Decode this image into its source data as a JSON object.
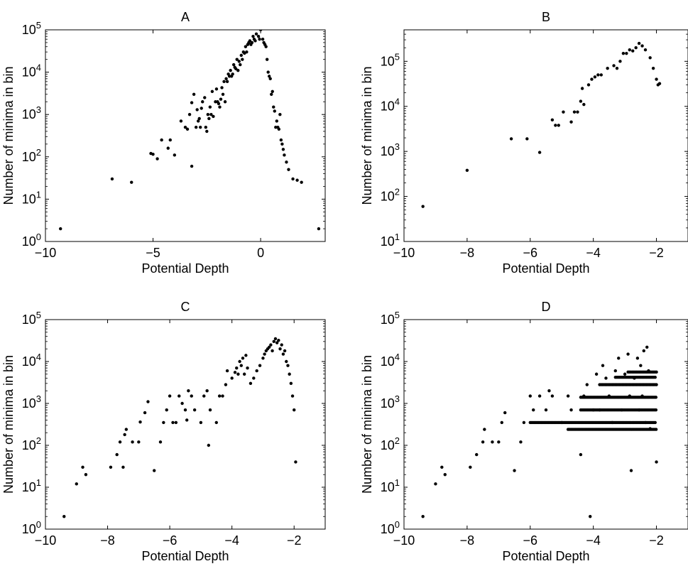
{
  "chart_data": [
    {
      "type": "scatter",
      "title": "A",
      "xlabel": "Potential Depth",
      "ylabel": "Number of minima in bin",
      "xlim": [
        -10,
        3
      ],
      "ylim": [
        1,
        100000
      ],
      "yscale": "log",
      "xticks": [
        -10,
        -5,
        0
      ],
      "yticks": [
        1,
        10,
        100,
        1000,
        10000,
        100000
      ],
      "grid": false,
      "marker_color": "#000000",
      "points": [
        [
          -9.3,
          2
        ],
        [
          -6.9,
          30
        ],
        [
          -6.0,
          25
        ],
        [
          -5.1,
          120
        ],
        [
          -5.0,
          115
        ],
        [
          -4.8,
          90
        ],
        [
          -4.6,
          250
        ],
        [
          -4.3,
          160
        ],
        [
          -4.2,
          250
        ],
        [
          -4.0,
          110
        ],
        [
          -3.7,
          700
        ],
        [
          -3.5,
          500
        ],
        [
          -3.4,
          450
        ],
        [
          -3.3,
          1000
        ],
        [
          -3.2,
          60
        ],
        [
          -3.2,
          1900
        ],
        [
          -3.1,
          3000
        ],
        [
          -3.0,
          500
        ],
        [
          -2.95,
          1300
        ],
        [
          -2.9,
          700
        ],
        [
          -2.85,
          800
        ],
        [
          -2.8,
          500
        ],
        [
          -2.75,
          1400
        ],
        [
          -2.7,
          2000
        ],
        [
          -2.6,
          2500
        ],
        [
          -2.55,
          500
        ],
        [
          -2.5,
          400
        ],
        [
          -2.45,
          1000
        ],
        [
          -2.4,
          800
        ],
        [
          -2.35,
          1500
        ],
        [
          -2.3,
          1000
        ],
        [
          -2.25,
          3500
        ],
        [
          -2.2,
          900
        ],
        [
          -2.1,
          2000
        ],
        [
          -2.05,
          4000
        ],
        [
          -2.0,
          2000
        ],
        [
          -1.95,
          1800
        ],
        [
          -1.9,
          1500
        ],
        [
          -1.85,
          2300
        ],
        [
          -1.8,
          4300
        ],
        [
          -1.75,
          3000
        ],
        [
          -1.7,
          6000
        ],
        [
          -1.65,
          2000
        ],
        [
          -1.6,
          7000
        ],
        [
          -1.55,
          6000
        ],
        [
          -1.5,
          9000
        ],
        [
          -1.45,
          8000
        ],
        [
          -1.4,
          11000
        ],
        [
          -1.35,
          8000
        ],
        [
          -1.3,
          9000
        ],
        [
          -1.25,
          15000
        ],
        [
          -1.2,
          13000
        ],
        [
          -1.15,
          12000
        ],
        [
          -1.1,
          20000
        ],
        [
          -1.05,
          11000
        ],
        [
          -1.0,
          18000
        ],
        [
          -0.95,
          15000
        ],
        [
          -0.9,
          25000
        ],
        [
          -0.85,
          20000
        ],
        [
          -0.8,
          30000
        ],
        [
          -0.75,
          28000
        ],
        [
          -0.7,
          40000
        ],
        [
          -0.65,
          30000
        ],
        [
          -0.6,
          45000
        ],
        [
          -0.55,
          50000
        ],
        [
          -0.5,
          55000
        ],
        [
          -0.45,
          45000
        ],
        [
          -0.4,
          50000
        ],
        [
          -0.35,
          70000
        ],
        [
          -0.3,
          60000
        ],
        [
          -0.25,
          55000
        ],
        [
          -0.2,
          80000
        ],
        [
          -0.15,
          130000
        ],
        [
          -0.1,
          70000
        ],
        [
          -0.05,
          60000
        ],
        [
          0.0,
          100000
        ],
        [
          0.05,
          120000
        ],
        [
          0.1,
          60000
        ],
        [
          0.15,
          50000
        ],
        [
          0.2,
          45000
        ],
        [
          0.25,
          40000
        ],
        [
          0.3,
          20000
        ],
        [
          0.35,
          10000
        ],
        [
          0.4,
          8000
        ],
        [
          0.45,
          7000
        ],
        [
          0.5,
          3000
        ],
        [
          0.55,
          3500
        ],
        [
          0.6,
          1500
        ],
        [
          0.65,
          1200
        ],
        [
          0.7,
          500
        ],
        [
          0.75,
          700
        ],
        [
          0.8,
          500
        ],
        [
          0.85,
          450
        ],
        [
          0.9,
          1000
        ],
        [
          0.95,
          250
        ],
        [
          1.0,
          200
        ],
        [
          1.05,
          150
        ],
        [
          1.1,
          110
        ],
        [
          1.2,
          75
        ],
        [
          1.3,
          50
        ],
        [
          1.5,
          30
        ],
        [
          1.7,
          28
        ],
        [
          1.9,
          25
        ],
        [
          2.7,
          2
        ]
      ]
    },
    {
      "type": "scatter",
      "title": "B",
      "xlabel": "Potential Depth",
      "ylabel": "Number of minima in bin",
      "xlim": [
        -10,
        -1
      ],
      "ylim": [
        10,
        500000
      ],
      "yscale": "log",
      "xticks": [
        -10,
        -8,
        -6,
        -4,
        -2
      ],
      "yticks": [
        10,
        100,
        1000,
        10000,
        100000
      ],
      "grid": false,
      "marker_color": "#000000",
      "points": [
        [
          -9.4,
          60
        ],
        [
          -8.0,
          380
        ],
        [
          -6.6,
          1900
        ],
        [
          -6.1,
          1900
        ],
        [
          -5.7,
          950
        ],
        [
          -5.3,
          5000
        ],
        [
          -5.2,
          3800
        ],
        [
          -5.1,
          3800
        ],
        [
          -4.95,
          7500
        ],
        [
          -4.7,
          4500
        ],
        [
          -4.6,
          7500
        ],
        [
          -4.5,
          7500
        ],
        [
          -4.4,
          13000
        ],
        [
          -4.35,
          25000
        ],
        [
          -4.3,
          11000
        ],
        [
          -4.15,
          30000
        ],
        [
          -4.05,
          40000
        ],
        [
          -3.95,
          45000
        ],
        [
          -3.85,
          50000
        ],
        [
          -3.75,
          50000
        ],
        [
          -3.55,
          70000
        ],
        [
          -3.35,
          80000
        ],
        [
          -3.25,
          70000
        ],
        [
          -3.15,
          100000
        ],
        [
          -3.05,
          150000
        ],
        [
          -2.95,
          150000
        ],
        [
          -2.85,
          180000
        ],
        [
          -2.75,
          170000
        ],
        [
          -2.65,
          200000
        ],
        [
          -2.55,
          250000
        ],
        [
          -2.45,
          220000
        ],
        [
          -2.35,
          180000
        ],
        [
          -2.2,
          120000
        ],
        [
          -2.1,
          70000
        ],
        [
          -2.0,
          40000
        ],
        [
          -1.95,
          30000
        ],
        [
          -1.9,
          32000
        ]
      ]
    },
    {
      "type": "scatter",
      "title": "C",
      "xlabel": "Potential Depth",
      "ylabel": "Number of minima in bin",
      "xlim": [
        -10,
        -1
      ],
      "ylim": [
        1,
        100000
      ],
      "yscale": "log",
      "xticks": [
        -10,
        -8,
        -6,
        -4,
        -2
      ],
      "yticks": [
        1,
        10,
        100,
        1000,
        10000,
        100000
      ],
      "grid": false,
      "marker_color": "#000000",
      "points": [
        [
          -9.4,
          2
        ],
        [
          -9.0,
          12
        ],
        [
          -8.8,
          30
        ],
        [
          -8.7,
          20
        ],
        [
          -7.9,
          30
        ],
        [
          -7.7,
          60
        ],
        [
          -7.6,
          120
        ],
        [
          -7.5,
          30
        ],
        [
          -7.45,
          180
        ],
        [
          -7.4,
          240
        ],
        [
          -7.2,
          120
        ],
        [
          -7.0,
          120
        ],
        [
          -6.95,
          360
        ],
        [
          -6.8,
          600
        ],
        [
          -6.7,
          1100
        ],
        [
          -6.5,
          25
        ],
        [
          -6.3,
          120
        ],
        [
          -6.2,
          350
        ],
        [
          -6.1,
          700
        ],
        [
          -6.0,
          1500
        ],
        [
          -5.9,
          350
        ],
        [
          -5.8,
          350
        ],
        [
          -5.7,
          1500
        ],
        [
          -5.6,
          1000
        ],
        [
          -5.5,
          700
        ],
        [
          -5.45,
          400
        ],
        [
          -5.4,
          2000
        ],
        [
          -5.3,
          1500
        ],
        [
          -5.2,
          700
        ],
        [
          -5.0,
          350
        ],
        [
          -4.9,
          1500
        ],
        [
          -4.8,
          2000
        ],
        [
          -4.75,
          100
        ],
        [
          -4.7,
          700
        ],
        [
          -4.5,
          350
        ],
        [
          -4.4,
          1500
        ],
        [
          -4.3,
          1500
        ],
        [
          -4.2,
          2800
        ],
        [
          -4.15,
          6000
        ],
        [
          -4.0,
          4000
        ],
        [
          -3.9,
          5500
        ],
        [
          -3.85,
          7000
        ],
        [
          -3.8,
          5000
        ],
        [
          -3.75,
          10000
        ],
        [
          -3.7,
          8000
        ],
        [
          -3.65,
          12000
        ],
        [
          -3.6,
          5000
        ],
        [
          -3.55,
          14000
        ],
        [
          -3.5,
          7000
        ],
        [
          -3.4,
          3000
        ],
        [
          -3.3,
          4000
        ],
        [
          -3.2,
          6000
        ],
        [
          -3.1,
          8000
        ],
        [
          -3.0,
          12000
        ],
        [
          -2.95,
          15000
        ],
        [
          -2.9,
          18000
        ],
        [
          -2.85,
          20000
        ],
        [
          -2.8,
          22000
        ],
        [
          -2.75,
          25000
        ],
        [
          -2.7,
          18000
        ],
        [
          -2.65,
          30000
        ],
        [
          -2.6,
          35000
        ],
        [
          -2.55,
          28000
        ],
        [
          -2.5,
          32000
        ],
        [
          -2.45,
          20000
        ],
        [
          -2.4,
          25000
        ],
        [
          -2.35,
          15000
        ],
        [
          -2.3,
          18000
        ],
        [
          -2.25,
          10000
        ],
        [
          -2.2,
          8000
        ],
        [
          -2.15,
          5000
        ],
        [
          -2.1,
          3000
        ],
        [
          -2.05,
          1500
        ],
        [
          -2.0,
          700
        ],
        [
          -1.95,
          40
        ]
      ]
    },
    {
      "type": "scatter",
      "title": "D",
      "xlabel": "Potential Depth",
      "ylabel": "Number of minima in bin",
      "xlim": [
        -10,
        -1
      ],
      "ylim": [
        1,
        100000
      ],
      "yscale": "log",
      "xticks": [
        -10,
        -8,
        -6,
        -4,
        -2
      ],
      "yticks": [
        1,
        10,
        100,
        1000,
        10000,
        100000
      ],
      "grid": false,
      "marker_color": "#000000",
      "points": [
        [
          -9.4,
          2
        ],
        [
          -9.0,
          12
        ],
        [
          -8.8,
          30
        ],
        [
          -8.7,
          20
        ],
        [
          -7.9,
          30
        ],
        [
          -7.7,
          60
        ],
        [
          -7.5,
          120
        ],
        [
          -7.45,
          240
        ],
        [
          -7.2,
          120
        ],
        [
          -7.0,
          120
        ],
        [
          -6.9,
          350
        ],
        [
          -6.8,
          600
        ],
        [
          -6.5,
          25
        ],
        [
          -6.3,
          120
        ],
        [
          -6.2,
          350
        ],
        [
          -6.0,
          1500
        ],
        [
          -5.9,
          700
        ],
        [
          -5.7,
          1500
        ],
        [
          -5.5,
          700
        ],
        [
          -5.4,
          2000
        ],
        [
          -5.3,
          1500
        ],
        [
          -5.0,
          350
        ],
        [
          -4.8,
          1500
        ],
        [
          -4.7,
          700
        ],
        [
          -4.4,
          60
        ],
        [
          -4.3,
          1500
        ],
        [
          -4.2,
          2800
        ],
        [
          -4.1,
          2
        ],
        [
          -4.0,
          700
        ],
        [
          -3.9,
          5000
        ],
        [
          -3.8,
          700
        ],
        [
          -3.7,
          8000
        ],
        [
          -3.6,
          4000
        ],
        [
          -3.5,
          1500
        ],
        [
          -3.4,
          350
        ],
        [
          -3.3,
          6000
        ],
        [
          -3.2,
          12000
        ],
        [
          -3.1,
          700
        ],
        [
          -3.0,
          5000
        ],
        [
          -2.9,
          15000
        ],
        [
          -2.85,
          1500
        ],
        [
          -2.8,
          25
        ],
        [
          -2.7,
          4000
        ],
        [
          -2.6,
          12000
        ],
        [
          -2.55,
          700
        ],
        [
          -2.5,
          8000
        ],
        [
          -2.45,
          1500
        ],
        [
          -2.4,
          18000
        ],
        [
          -2.35,
          350
        ],
        [
          -2.3,
          22000
        ],
        [
          -2.25,
          6000
        ],
        [
          -2.2,
          250
        ],
        [
          -2.0,
          40
        ]
      ],
      "level_bands": [
        {
          "y": 240,
          "x_from": -4.8,
          "x_to": -2.0
        },
        {
          "y": 350,
          "x_from": -6.0,
          "x_to": -2.0
        },
        {
          "y": 700,
          "x_from": -4.4,
          "x_to": -2.0
        },
        {
          "y": 1400,
          "x_from": -4.4,
          "x_to": -2.0
        },
        {
          "y": 2800,
          "x_from": -3.8,
          "x_to": -2.0
        },
        {
          "y": 4200,
          "x_from": -3.3,
          "x_to": -2.0
        },
        {
          "y": 5600,
          "x_from": -2.9,
          "x_to": -2.0
        }
      ]
    }
  ]
}
